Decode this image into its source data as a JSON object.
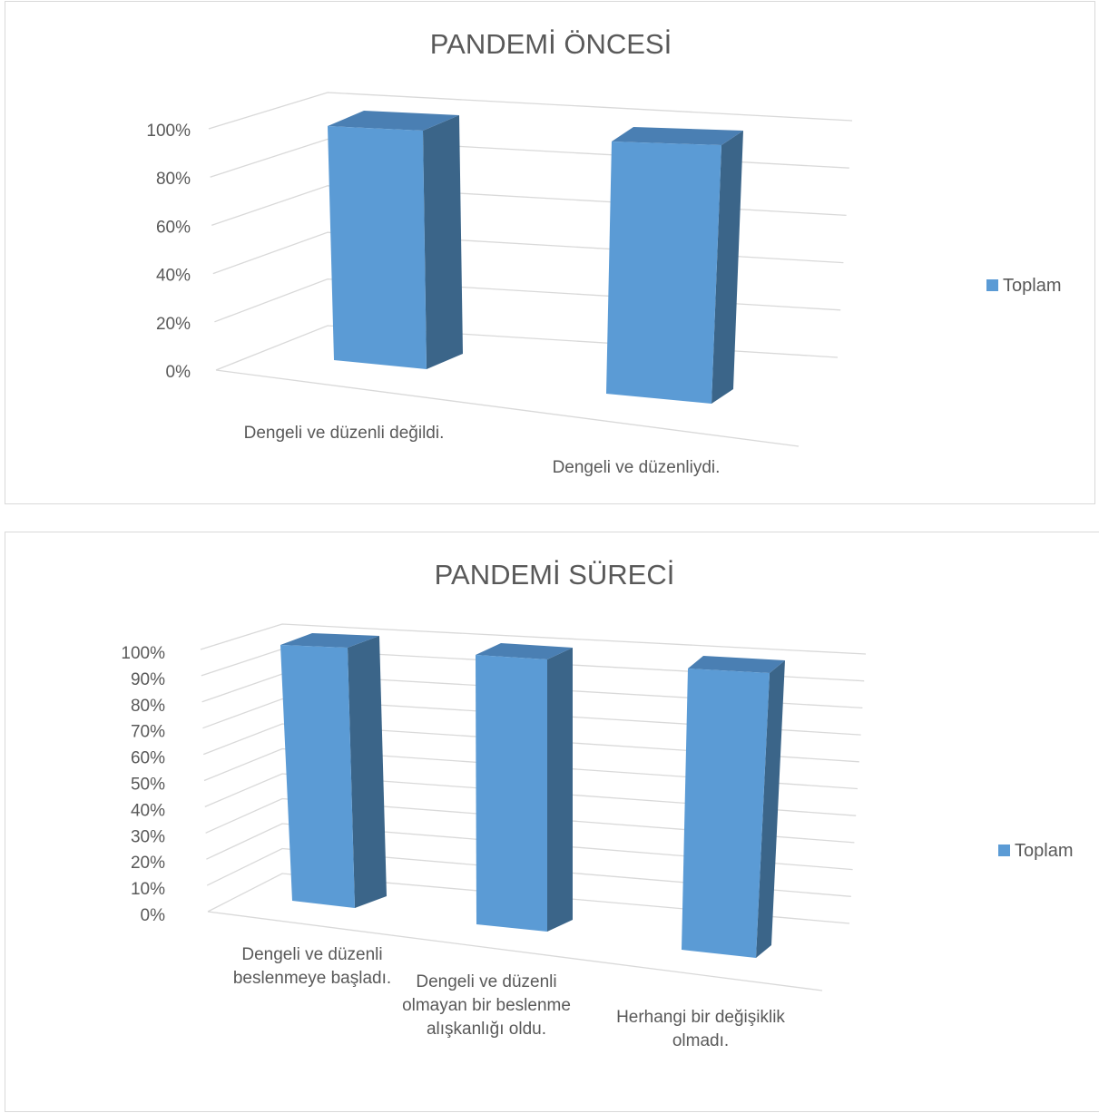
{
  "chart_data": [
    {
      "type": "bar",
      "title": "PANDEMİ ÖNCESİ",
      "categories": [
        "Dengeli ve düzenli değildi.",
        "Dengeli ve düzenliydi."
      ],
      "series": [
        {
          "name": "Toplam",
          "values": [
            100,
            100
          ]
        }
      ],
      "ylim": [
        0,
        100
      ],
      "yticks": [
        "0%",
        "20%",
        "40%",
        "60%",
        "80%",
        "100%"
      ],
      "legend": "right",
      "grid": true,
      "style": "3d-column"
    },
    {
      "type": "bar",
      "title": "PANDEMİ SÜRECİ",
      "categories": [
        "Dengeli ve düzenli beslenmeye başladı.",
        "Dengeli ve düzenli olmayan bir beslenme alışkanlığı oldu.",
        "Herhangi bir değişiklik olmadı."
      ],
      "series": [
        {
          "name": "Toplam",
          "values": [
            100,
            100,
            100
          ]
        }
      ],
      "ylim": [
        0,
        100
      ],
      "yticks": [
        "0%",
        "10%",
        "20%",
        "30%",
        "40%",
        "50%",
        "60%",
        "70%",
        "80%",
        "90%",
        "100%"
      ],
      "legend": "right",
      "grid": true,
      "style": "3d-column"
    }
  ],
  "colors": {
    "bar_front": "#5b9bd5",
    "bar_side": "#3b6589",
    "bar_top": "#4a7fb3",
    "text": "#595959",
    "grid": "#d9d9d9"
  }
}
